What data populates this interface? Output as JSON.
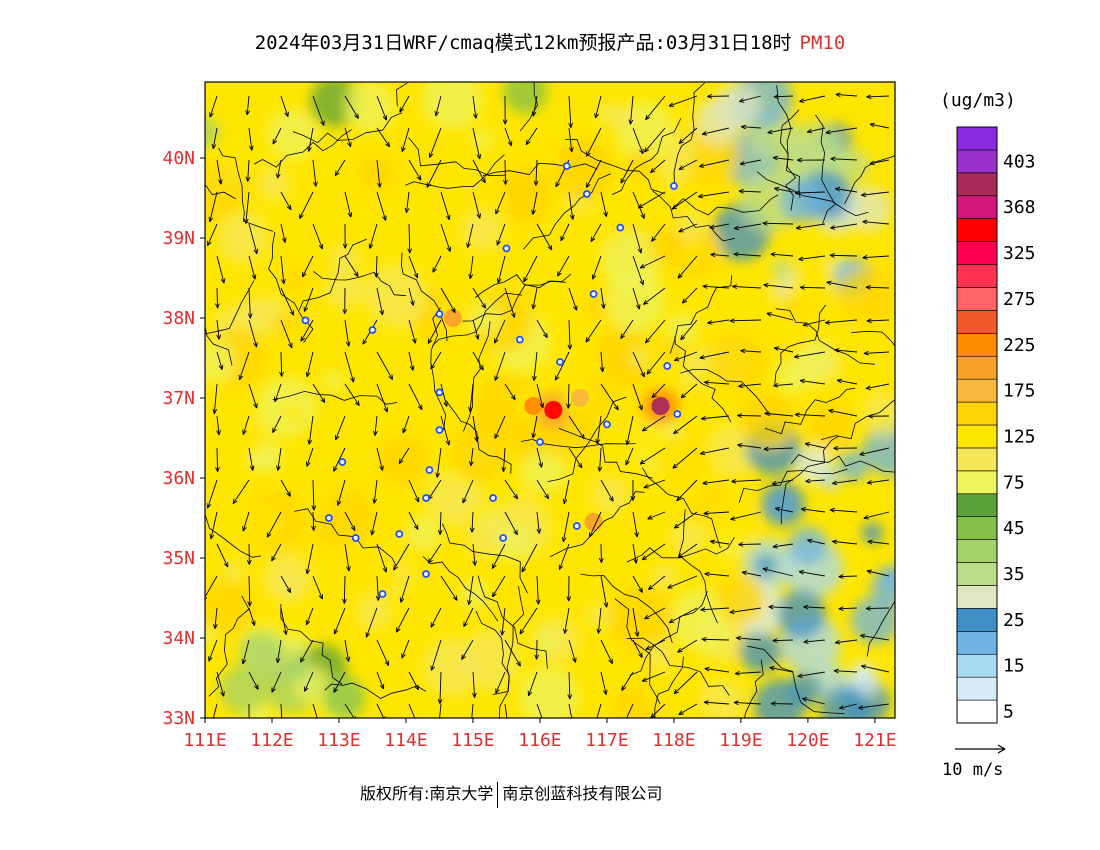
{
  "title": {
    "main": "2024年03月31日WRF/cmaq模式12km预报产品:03月31日18时",
    "pollutant": "PM10"
  },
  "colors": {
    "axis_label": "#e03030",
    "title_pollutant": "#e03030",
    "station_marker": "#1e50ff",
    "boundary": "#000000",
    "wind_vector": "#000000"
  },
  "map": {
    "lon_range": [
      111,
      121.3
    ],
    "lat_range": [
      33,
      40.95
    ],
    "lon_ticks": [
      "111E",
      "112E",
      "113E",
      "114E",
      "115E",
      "116E",
      "117E",
      "118E",
      "119E",
      "120E",
      "121E"
    ],
    "lat_ticks": [
      "33N",
      "34N",
      "35N",
      "36N",
      "37N",
      "38N",
      "39N",
      "40N"
    ],
    "background_concentration": 100,
    "hotspots": [
      {
        "lon": 114.7,
        "lat": 38.0,
        "value": 180
      },
      {
        "lon": 115.9,
        "lat": 36.9,
        "value": 200
      },
      {
        "lon": 116.2,
        "lat": 36.85,
        "value": 330
      },
      {
        "lon": 117.8,
        "lat": 36.9,
        "value": 370
      },
      {
        "lon": 116.8,
        "lat": 35.45,
        "value": 190
      },
      {
        "lon": 116.6,
        "lat": 37.0,
        "value": 170
      }
    ],
    "stations": [
      {
        "lon": 116.4,
        "lat": 39.9
      },
      {
        "lon": 116.7,
        "lat": 39.55
      },
      {
        "lon": 117.2,
        "lat": 39.13
      },
      {
        "lon": 118.0,
        "lat": 39.65
      },
      {
        "lon": 115.5,
        "lat": 38.87
      },
      {
        "lon": 116.8,
        "lat": 38.3
      },
      {
        "lon": 114.5,
        "lat": 38.05
      },
      {
        "lon": 112.5,
        "lat": 37.97
      },
      {
        "lon": 113.5,
        "lat": 37.85
      },
      {
        "lon": 115.7,
        "lat": 37.73
      },
      {
        "lon": 116.3,
        "lat": 37.45
      },
      {
        "lon": 114.5,
        "lat": 37.07
      },
      {
        "lon": 114.5,
        "lat": 36.6
      },
      {
        "lon": 117.0,
        "lat": 36.67
      },
      {
        "lon": 117.9,
        "lat": 37.4
      },
      {
        "lon": 118.05,
        "lat": 36.8
      },
      {
        "lon": 116.0,
        "lat": 36.45
      },
      {
        "lon": 114.35,
        "lat": 36.1
      },
      {
        "lon": 113.05,
        "lat": 36.2
      },
      {
        "lon": 115.3,
        "lat": 35.75
      },
      {
        "lon": 114.3,
        "lat": 35.75
      },
      {
        "lon": 112.85,
        "lat": 35.5
      },
      {
        "lon": 113.25,
        "lat": 35.25
      },
      {
        "lon": 113.9,
        "lat": 35.3
      },
      {
        "lon": 115.45,
        "lat": 35.25
      },
      {
        "lon": 116.55,
        "lat": 35.4
      },
      {
        "lon": 114.3,
        "lat": 34.8
      },
      {
        "lon": 113.65,
        "lat": 34.55
      }
    ],
    "wind_pattern": "easterly near coast, northerly/northwesterly inland"
  },
  "colorbar": {
    "unit": "(ug/m3)",
    "levels": [
      {
        "color": "#ffffff",
        "label": "5"
      },
      {
        "color": "#d7ecf7",
        "label": ""
      },
      {
        "color": "#a9daf3",
        "label": "15"
      },
      {
        "color": "#6fb3e0",
        "label": ""
      },
      {
        "color": "#3e8fc6",
        "label": "25"
      },
      {
        "color": "#dfe7c0",
        "label": ""
      },
      {
        "color": "#bcdc8a",
        "label": "35"
      },
      {
        "color": "#a4d269",
        "label": ""
      },
      {
        "color": "#82c046",
        "label": "45"
      },
      {
        "color": "#5ca23c",
        "label": ""
      },
      {
        "color": "#eef35e",
        "label": "75"
      },
      {
        "color": "#f6e758",
        "label": ""
      },
      {
        "color": "#ffe600",
        "label": "125"
      },
      {
        "color": "#ffd400",
        "label": ""
      },
      {
        "color": "#f9b73b",
        "label": "175"
      },
      {
        "color": "#f8a12a",
        "label": ""
      },
      {
        "color": "#ff8c00",
        "label": "225"
      },
      {
        "color": "#f05a28",
        "label": ""
      },
      {
        "color": "#ff6464",
        "label": "275"
      },
      {
        "color": "#ff3250",
        "label": ""
      },
      {
        "color": "#ff0050",
        "label": "325"
      },
      {
        "color": "#ff0000",
        "label": ""
      },
      {
        "color": "#d0187a",
        "label": "368"
      },
      {
        "color": "#a82b5a",
        "label": ""
      },
      {
        "color": "#9932cc",
        "label": "403"
      },
      {
        "color": "#8a2be2",
        "label": ""
      }
    ]
  },
  "wind_legend": {
    "label": "10 m/s"
  },
  "credit": {
    "left": "版权所有:南京大学",
    "right": "南京创蓝科技有限公司"
  }
}
